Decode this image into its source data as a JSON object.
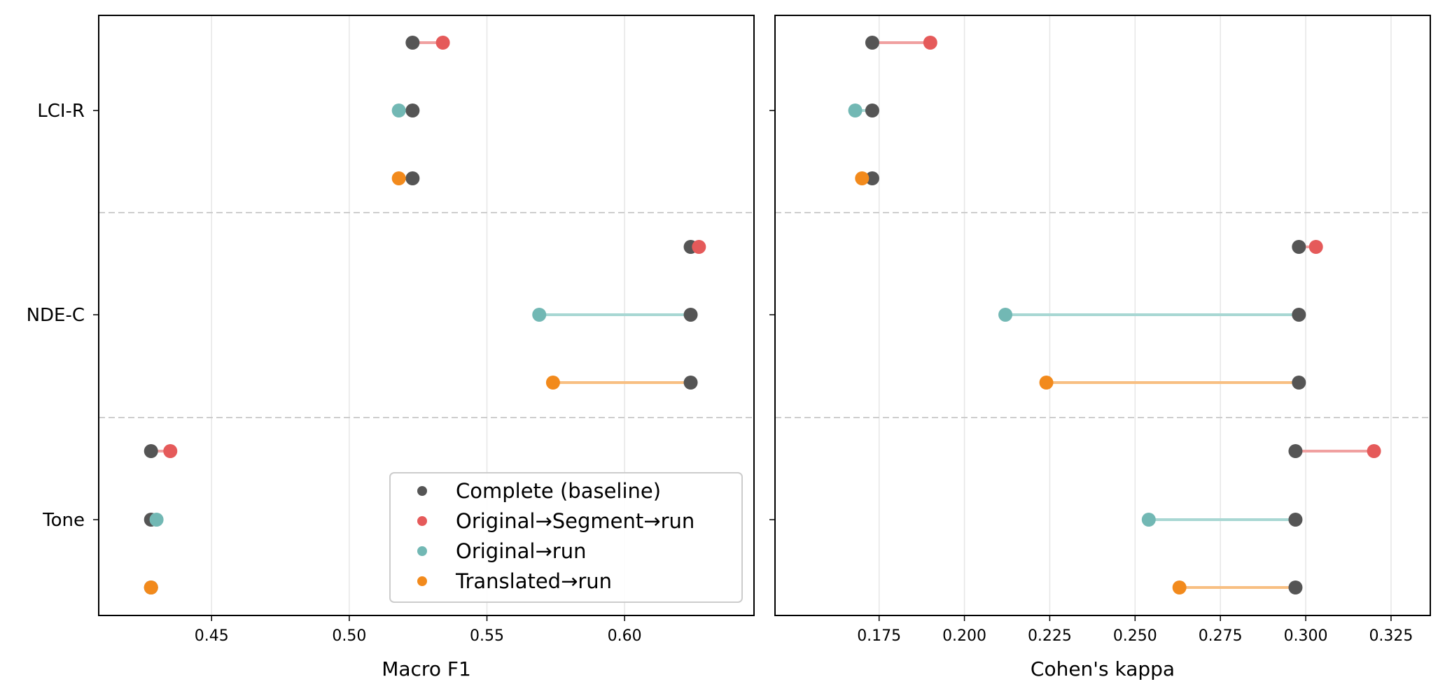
{
  "chart_data": [
    {
      "type": "dumbbell",
      "xlabel": "Macro F1",
      "ylabel": "",
      "xlim": [
        0.409,
        0.647
      ],
      "xticks": [
        0.45,
        0.5,
        0.55,
        0.6
      ],
      "xtick_labels": [
        "0.45",
        "0.50",
        "0.55",
        "0.60"
      ],
      "grid_x": true,
      "legend_position": "bottom-right",
      "groups": [
        {
          "name": "LCI-R",
          "rows": [
            {
              "series": "Original→Segment→run",
              "baseline": 0.523,
              "value": 0.534
            },
            {
              "series": "Original→run",
              "baseline": 0.523,
              "value": 0.518
            },
            {
              "series": "Translated→run",
              "baseline": 0.523,
              "value": 0.518
            }
          ]
        },
        {
          "name": "NDE-C",
          "rows": [
            {
              "series": "Original→Segment→run",
              "baseline": 0.624,
              "value": 0.627
            },
            {
              "series": "Original→run",
              "baseline": 0.624,
              "value": 0.569
            },
            {
              "series": "Translated→run",
              "baseline": 0.624,
              "value": 0.574
            }
          ]
        },
        {
          "name": "Tone",
          "rows": [
            {
              "series": "Original→Segment→run",
              "baseline": 0.428,
              "value": 0.435
            },
            {
              "series": "Original→run",
              "baseline": 0.428,
              "value": 0.43
            },
            {
              "series": "Translated→run",
              "baseline": 0.428,
              "value": 0.428
            }
          ]
        }
      ]
    },
    {
      "type": "dumbbell",
      "xlabel": "Cohen's kappa",
      "ylabel": "",
      "xlim": [
        0.1445,
        0.3365
      ],
      "xticks": [
        0.175,
        0.2,
        0.225,
        0.25,
        0.275,
        0.3,
        0.325
      ],
      "xtick_labels": [
        "0.175",
        "0.200",
        "0.225",
        "0.250",
        "0.275",
        "0.300",
        "0.325"
      ],
      "grid_x": true,
      "groups": [
        {
          "name": "LCI-R",
          "rows": [
            {
              "series": "Original→Segment→run",
              "baseline": 0.173,
              "value": 0.19
            },
            {
              "series": "Original→run",
              "baseline": 0.173,
              "value": 0.168
            },
            {
              "series": "Translated→run",
              "baseline": 0.173,
              "value": 0.17
            }
          ]
        },
        {
          "name": "NDE-C",
          "rows": [
            {
              "series": "Original→Segment→run",
              "baseline": 0.298,
              "value": 0.303
            },
            {
              "series": "Original→run",
              "baseline": 0.298,
              "value": 0.212
            },
            {
              "series": "Translated→run",
              "baseline": 0.298,
              "value": 0.224
            }
          ]
        },
        {
          "name": "Tone",
          "rows": [
            {
              "series": "Original→Segment→run",
              "baseline": 0.297,
              "value": 0.32
            },
            {
              "series": "Original→run",
              "baseline": 0.297,
              "value": 0.254
            },
            {
              "series": "Translated→run",
              "baseline": 0.297,
              "value": 0.263
            }
          ]
        }
      ]
    }
  ],
  "legend": {
    "entries": [
      {
        "label": "Complete (baseline)",
        "color": "#555555"
      },
      {
        "label": "Original→Segment→run",
        "color": "#e55a5a"
      },
      {
        "label": "Original→run",
        "color": "#72b8b4"
      },
      {
        "label": "Translated→run",
        "color": "#f28a1c"
      }
    ]
  },
  "colors": {
    "baseline": "#555555",
    "Original→Segment→run": "#e55a5a",
    "Original→run": "#72b8b4",
    "Translated→run": "#f28a1c",
    "lines": {
      "Original→Segment→run": "#f0a0a0",
      "Original→run": "#a8d7d3",
      "Translated→run": "#f8bf82"
    },
    "grid": "#e6e6e6",
    "separator": "#c8c8c8"
  }
}
